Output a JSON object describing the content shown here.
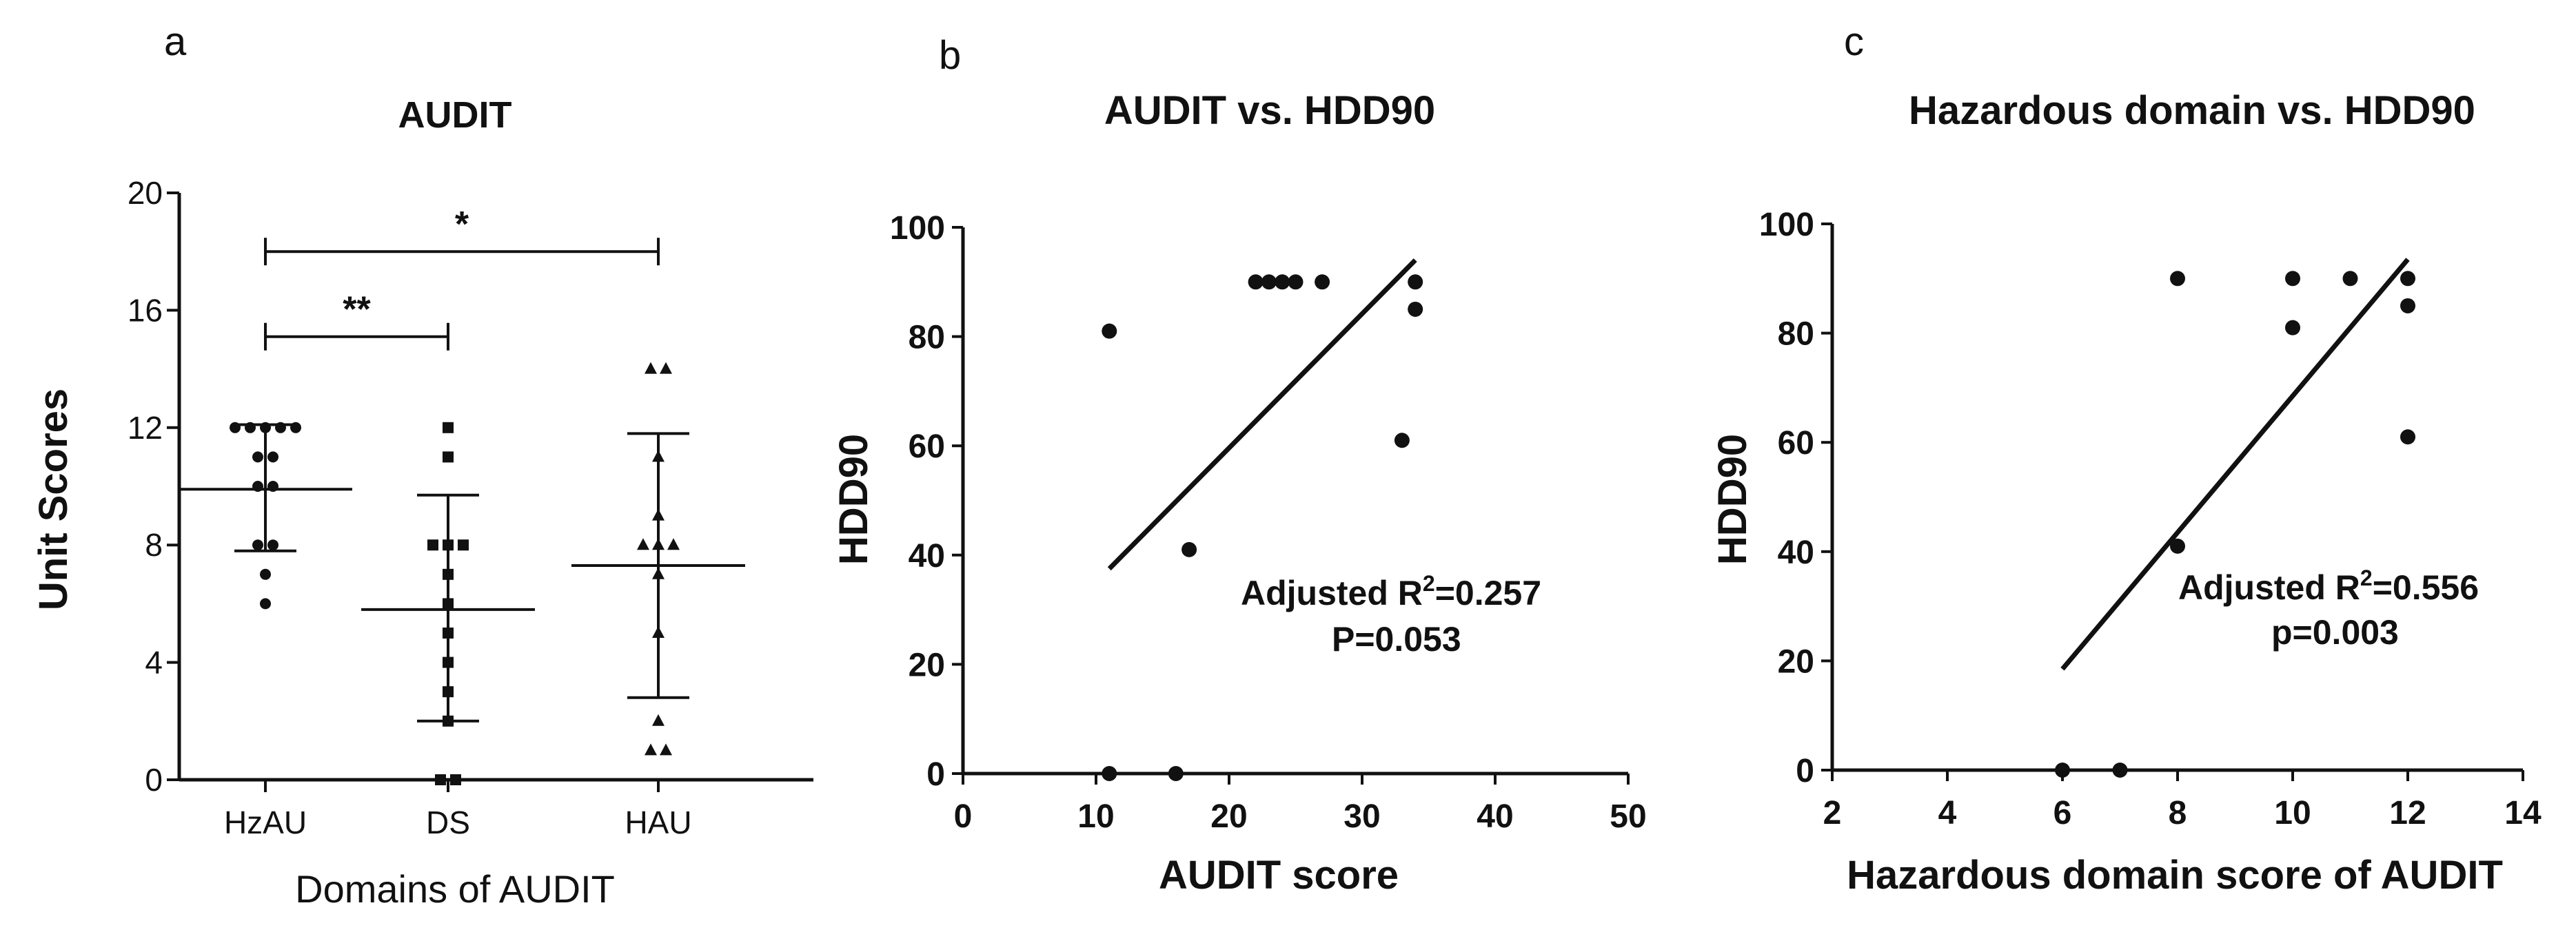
{
  "chart_data": [
    {
      "panel": "a",
      "type": "scatter",
      "title": "AUDIT",
      "xlabel": "Domains of AUDIT",
      "ylabel": "Unit Scores",
      "categories": [
        "HzAU",
        "DS",
        "HAU"
      ],
      "ylim": [
        0,
        20
      ],
      "yticks": [
        0,
        4,
        8,
        12,
        16,
        20
      ],
      "series": [
        {
          "category": "HzAU",
          "marker": "circle",
          "values": [
            12,
            12,
            12,
            12,
            12,
            11,
            11,
            10,
            10,
            8,
            8,
            7,
            6
          ],
          "mean": 9.9,
          "sd_low": 7.8,
          "sd_high": 12.1
        },
        {
          "category": "DS",
          "marker": "square",
          "values": [
            12,
            11,
            8,
            8,
            8,
            7,
            6,
            5,
            4,
            3,
            2,
            0,
            0
          ],
          "mean": 5.8,
          "sd_low": 2.0,
          "sd_high": 9.7
        },
        {
          "category": "HAU",
          "marker": "triangle",
          "values": [
            14,
            14,
            11,
            9,
            8,
            8,
            8,
            7,
            5,
            2,
            1,
            1
          ],
          "mean": 7.3,
          "sd_low": 2.8,
          "sd_high": 11.8
        }
      ],
      "comparisons": [
        {
          "from": "HzAU",
          "to": "DS",
          "label": "**",
          "y": 15.1
        },
        {
          "from": "HzAU",
          "to": "HAU",
          "label": "*",
          "y": 18.0
        }
      ]
    },
    {
      "panel": "b",
      "type": "scatter",
      "title": "AUDIT vs. HDD90",
      "xlabel": "AUDIT score",
      "ylabel": "HDD90",
      "xlim": [
        0,
        50
      ],
      "ylim": [
        0,
        100
      ],
      "xticks": [
        0,
        10,
        20,
        30,
        40,
        50
      ],
      "yticks": [
        0,
        20,
        40,
        60,
        80,
        100
      ],
      "points": [
        {
          "x": 11,
          "y": 81
        },
        {
          "x": 11,
          "y": 0
        },
        {
          "x": 16,
          "y": 0
        },
        {
          "x": 17,
          "y": 41
        },
        {
          "x": 22,
          "y": 90
        },
        {
          "x": 23,
          "y": 90
        },
        {
          "x": 24,
          "y": 90
        },
        {
          "x": 25,
          "y": 90
        },
        {
          "x": 27,
          "y": 90
        },
        {
          "x": 33,
          "y": 61
        },
        {
          "x": 34,
          "y": 90
        },
        {
          "x": 34,
          "y": 85
        }
      ],
      "fit_line": {
        "x": [
          11,
          34
        ],
        "y": [
          37.5,
          94
        ]
      },
      "annotation": {
        "line1_prefix": "Adjusted R",
        "sup": "2",
        "line1_suffix": "=0.257",
        "line2": "P=0.053"
      }
    },
    {
      "panel": "c",
      "type": "scatter",
      "title": "Hazardous domain vs. HDD90",
      "xlabel": "Hazardous domain score of AUDIT",
      "ylabel": "HDD90",
      "xlim": [
        2,
        14
      ],
      "ylim": [
        0,
        100
      ],
      "xticks": [
        2,
        4,
        6,
        8,
        10,
        12,
        14
      ],
      "yticks": [
        0,
        20,
        40,
        60,
        80,
        100
      ],
      "points": [
        {
          "x": 6,
          "y": 0
        },
        {
          "x": 7,
          "y": 0
        },
        {
          "x": 8,
          "y": 90
        },
        {
          "x": 8,
          "y": 41
        },
        {
          "x": 10,
          "y": 90
        },
        {
          "x": 10,
          "y": 81
        },
        {
          "x": 11,
          "y": 90
        },
        {
          "x": 12,
          "y": 90
        },
        {
          "x": 12,
          "y": 85
        },
        {
          "x": 12,
          "y": 61
        }
      ],
      "fit_line": {
        "x": [
          6,
          12
        ],
        "y": [
          18.5,
          93.5
        ]
      },
      "annotation": {
        "line1_prefix": "Adjusted R",
        "sup": "2",
        "line1_suffix": "=0.556",
        "line2": "p=0.003"
      }
    }
  ]
}
